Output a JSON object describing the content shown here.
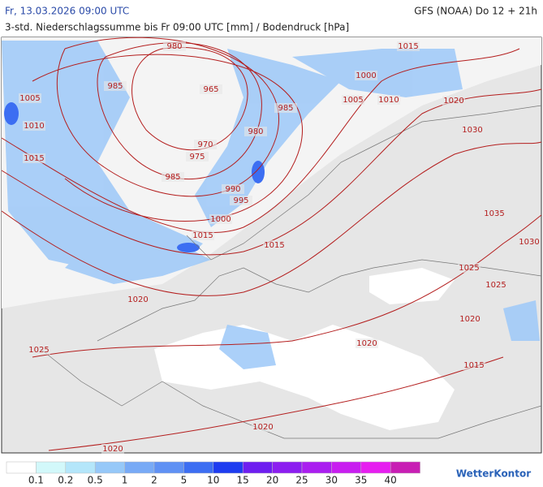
{
  "header": {
    "valid_time": "Fr, 13.03.2026 09:00 UTC",
    "model": "GFS (NOAA) Do 12 + 21h",
    "subtitle": "3-std. Niederschlagssumme bis Fr 09:00 UTC [mm] / Bodendruck [hPa]"
  },
  "isobar_labels": [
    "980",
    "985",
    "965",
    "970",
    "975",
    "985",
    "990",
    "995",
    "1000",
    "1015",
    "980",
    "985",
    "1005",
    "1010",
    "1015",
    "1000",
    "1005",
    "1010",
    "1015",
    "1020",
    "1030",
    "1035",
    "1030",
    "1025",
    "1025",
    "1020",
    "1015",
    "1015",
    "1020",
    "1025",
    "1020",
    "1020",
    "1020"
  ],
  "legend": {
    "labels": [
      "0.1",
      "0.2",
      "0.5",
      "1",
      "2",
      "5",
      "10",
      "15",
      "20",
      "25",
      "30",
      "35",
      "40"
    ],
    "colors": [
      "#ffffff",
      "#d2f8fa",
      "#b4e6fa",
      "#96c8f8",
      "#78aaf6",
      "#5f91f4",
      "#3c6ef2",
      "#1e3cf0",
      "#6e1ef0",
      "#8c1ef0",
      "#aa1ef0",
      "#c81ef0",
      "#e61ef0",
      "#c81eb4"
    ]
  },
  "logo": "WetterKontor"
}
